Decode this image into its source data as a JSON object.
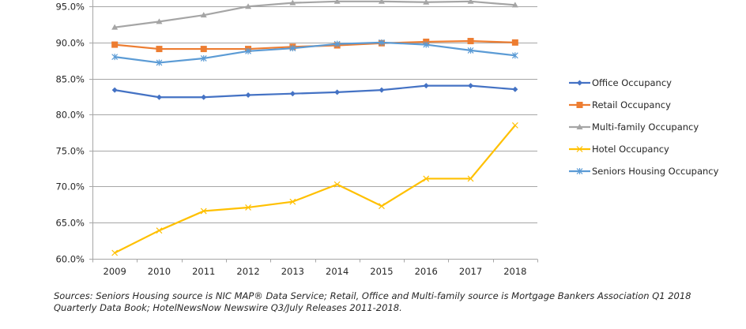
{
  "chart_data": {
    "type": "line",
    "title": "",
    "xlabel": "",
    "ylabel": "",
    "categories": [
      "2009",
      "2010",
      "2011",
      "2012",
      "2013",
      "2014",
      "2015",
      "2016",
      "2017",
      "2018"
    ],
    "ylim": [
      60,
      95
    ],
    "yticks": [
      60,
      65,
      70,
      75,
      80,
      85,
      90,
      95
    ],
    "ytick_labels": [
      "60.0%",
      "65.0%",
      "70.0%",
      "75.0%",
      "80.0%",
      "85.0%",
      "90.0%",
      "95.0%"
    ],
    "grid": true,
    "legend_position": "right",
    "series": [
      {
        "name": "Office Occupancy",
        "color": "#4472C4",
        "marker": "diamond",
        "values": [
          83.4,
          82.4,
          82.4,
          82.7,
          82.9,
          83.1,
          83.4,
          84.0,
          84.0,
          83.5
        ]
      },
      {
        "name": "Retail Occupancy",
        "color": "#ED7D31",
        "marker": "square",
        "values": [
          89.7,
          89.1,
          89.1,
          89.1,
          89.4,
          89.6,
          89.9,
          90.1,
          90.2,
          90.0
        ]
      },
      {
        "name": "Multi-family Occupancy",
        "color": "#A5A5A5",
        "marker": "triangle",
        "values": [
          92.1,
          92.9,
          93.8,
          95.0,
          95.5,
          95.7,
          95.7,
          95.6,
          95.7,
          95.2
        ]
      },
      {
        "name": "Hotel Occupancy",
        "color": "#FFC000",
        "marker": "x",
        "values": [
          60.8,
          63.9,
          66.6,
          67.1,
          67.9,
          70.3,
          67.3,
          71.1,
          71.1,
          78.5
        ]
      },
      {
        "name": "Seniors Housing Occupancy",
        "color": "#5B9BD5",
        "marker": "star",
        "values": [
          88.0,
          87.2,
          87.8,
          88.8,
          89.2,
          89.8,
          90.0,
          89.7,
          88.9,
          88.2
        ]
      }
    ]
  },
  "footnote": "Sources: Seniors Housing source is NIC MAP® Data Service; Retail, Office and Multi-family source is Mortgage Bankers Association Q1 2018 Quarterly Data Book; HotelNewsNow Newswire Q3/July Releases 2011-2018."
}
